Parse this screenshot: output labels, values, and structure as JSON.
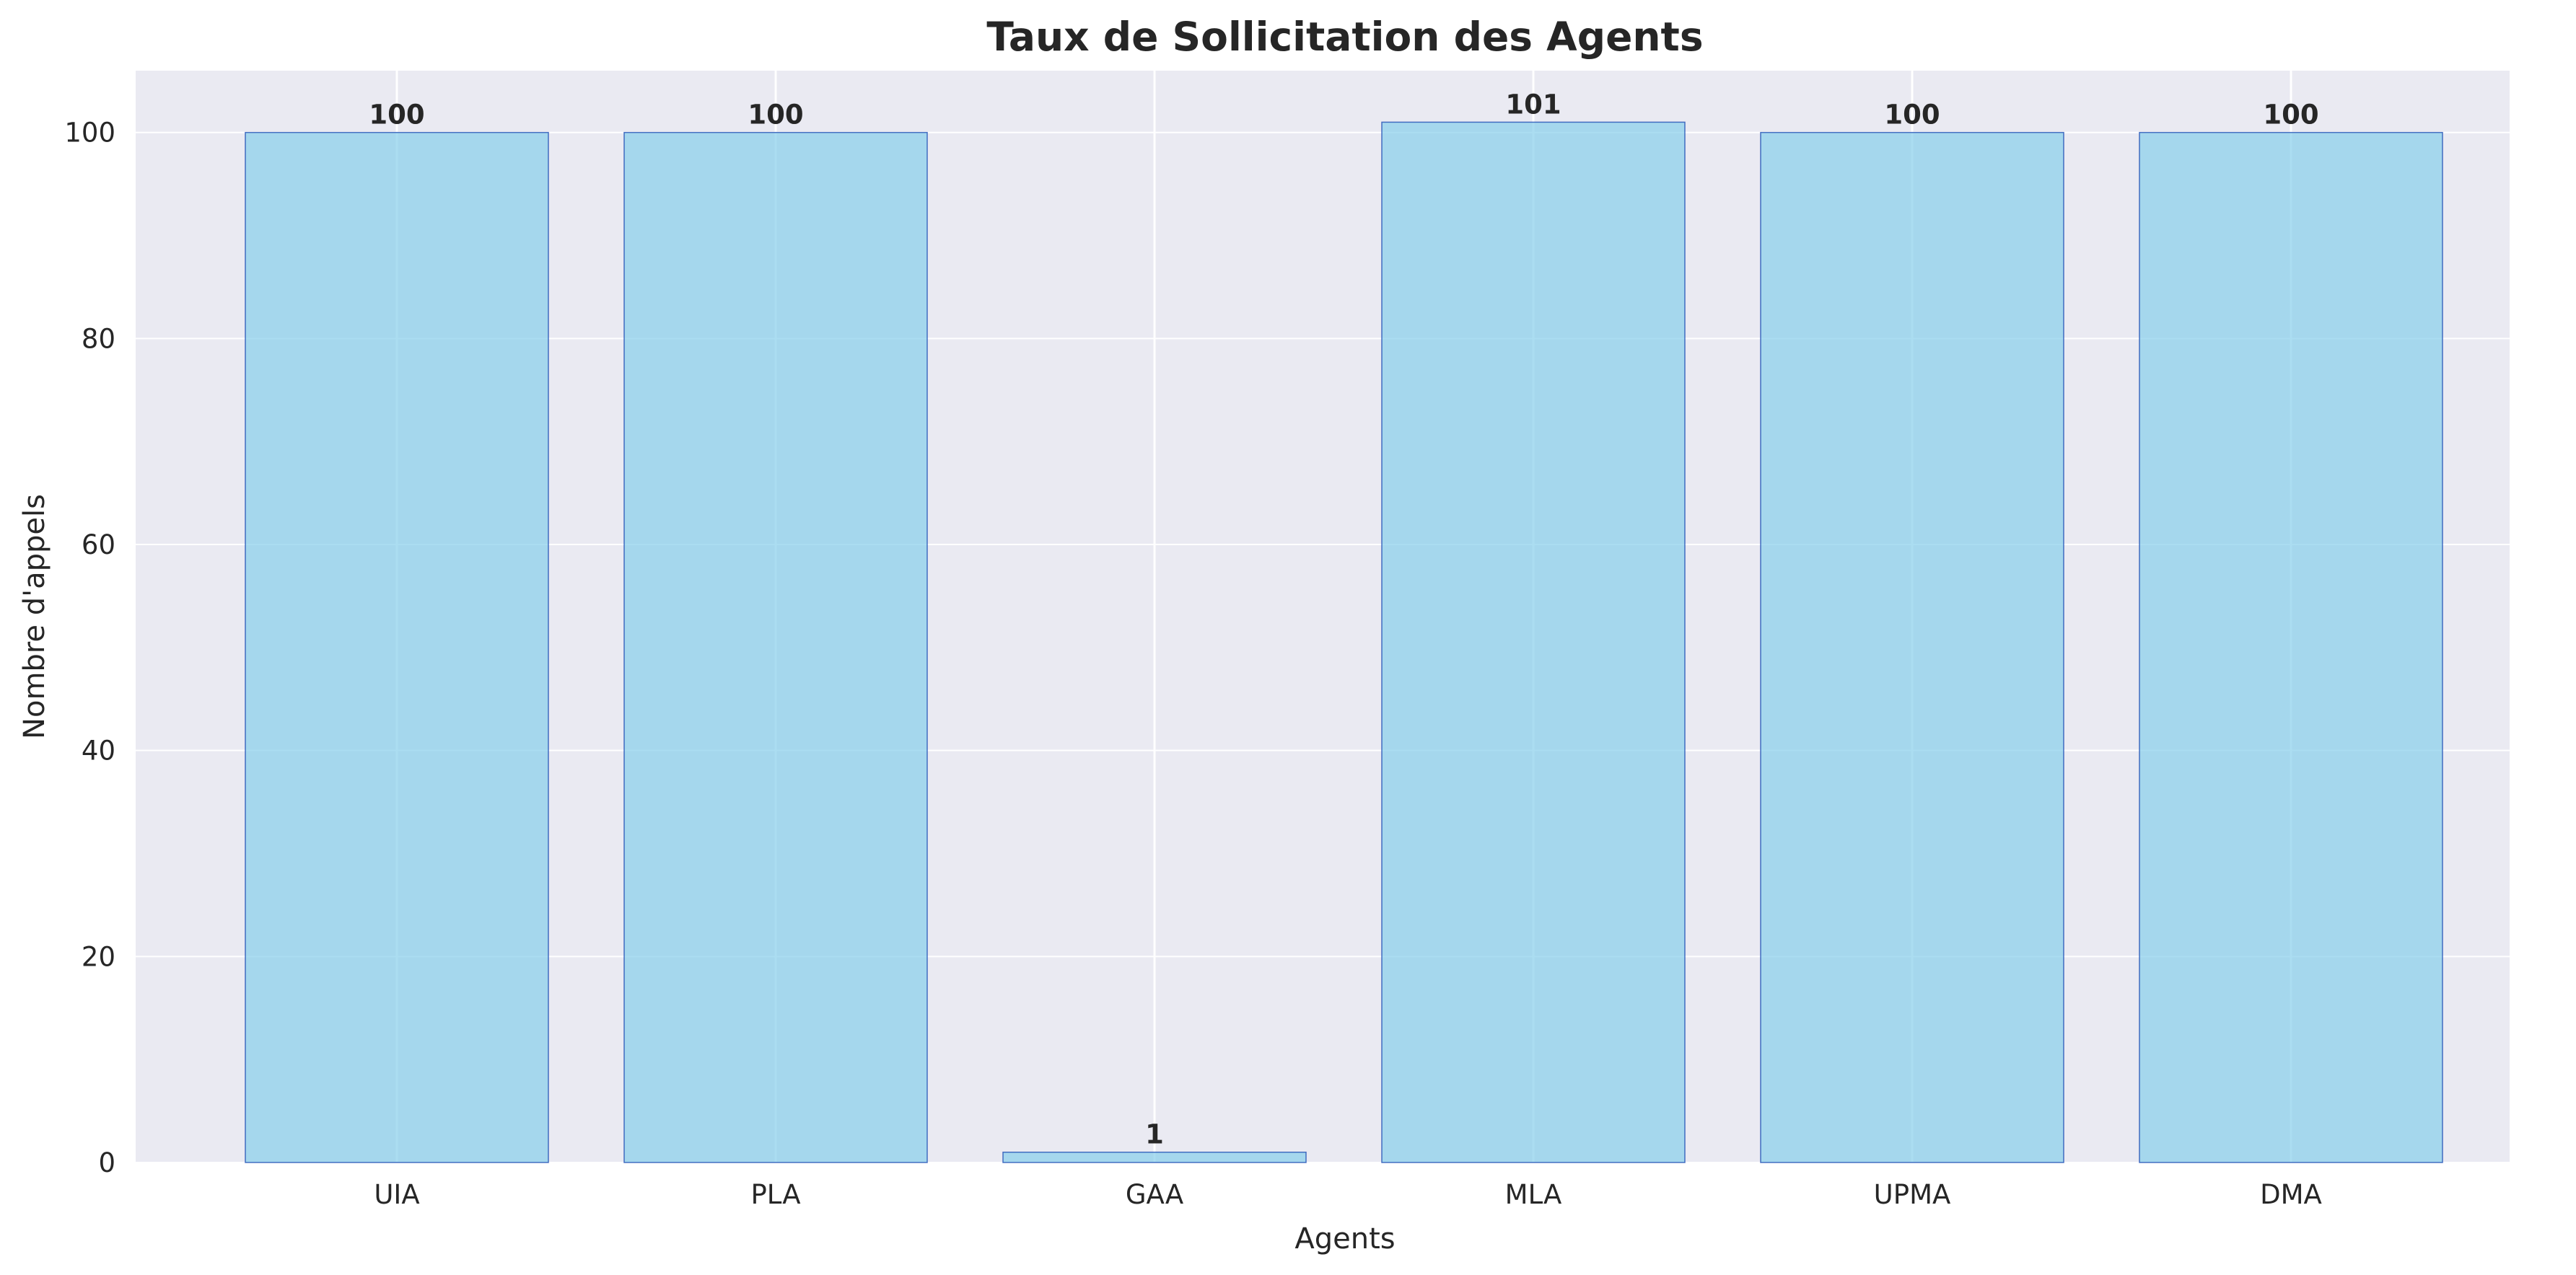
{
  "chart_data": {
    "type": "bar",
    "title": "Taux de Sollicitation des Agents",
    "xlabel": "Agents",
    "ylabel": "Nombre d'appels",
    "categories": [
      "UIA",
      "PLA",
      "GAA",
      "MLA",
      "UPMA",
      "DMA"
    ],
    "values": [
      100,
      100,
      1,
      101,
      100,
      100
    ],
    "data_labels": [
      "100",
      "100",
      "1",
      "101",
      "100",
      "100"
    ],
    "ylim": [
      0,
      106
    ],
    "yticks": [
      0,
      20,
      40,
      60,
      80,
      100
    ],
    "ytick_labels": [
      "0",
      "20",
      "40",
      "60",
      "80",
      "100"
    ],
    "grid": true,
    "legend": "none",
    "colors": {
      "plot_background": "#eaeaf2",
      "grid": "#ffffff",
      "bar_fill": "#87ceeb",
      "bar_fill_opacity": 0.7,
      "bar_edge": "#1f4fb4",
      "text": "#262626"
    }
  }
}
